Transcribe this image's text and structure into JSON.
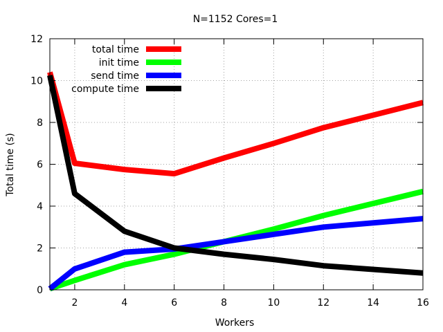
{
  "chart_data": {
    "type": "line",
    "title": "N=1152 Cores=1",
    "xlabel": "Workers",
    "ylabel": "Total time (s)",
    "xlim": [
      1,
      16
    ],
    "ylim": [
      0,
      12
    ],
    "xticks": [
      2,
      4,
      6,
      8,
      10,
      12,
      14,
      16
    ],
    "yticks": [
      0,
      2,
      4,
      6,
      8,
      10,
      12
    ],
    "grid": true,
    "legend_position": "top-left",
    "series": [
      {
        "name": "total time",
        "color": "#ff0000",
        "points": [
          [
            1,
            10.4
          ],
          [
            2,
            6.05
          ],
          [
            4,
            5.75
          ],
          [
            6,
            5.55
          ],
          [
            8,
            6.3
          ],
          [
            10,
            7.0
          ],
          [
            12,
            7.75
          ],
          [
            16,
            8.95
          ]
        ]
      },
      {
        "name": "init time",
        "color": "#00ff00",
        "points": [
          [
            1,
            0.05
          ],
          [
            2,
            0.45
          ],
          [
            4,
            1.2
          ],
          [
            6,
            1.7
          ],
          [
            8,
            2.3
          ],
          [
            10,
            2.9
          ],
          [
            12,
            3.55
          ],
          [
            16,
            4.7
          ]
        ]
      },
      {
        "name": "send time",
        "color": "#0000ff",
        "points": [
          [
            1,
            0.05
          ],
          [
            2,
            1.0
          ],
          [
            4,
            1.8
          ],
          [
            6,
            1.95
          ],
          [
            8,
            2.3
          ],
          [
            10,
            2.65
          ],
          [
            12,
            3.0
          ],
          [
            16,
            3.4
          ]
        ]
      },
      {
        "name": "compute time",
        "color": "#000000",
        "points": [
          [
            1,
            10.25
          ],
          [
            2,
            4.6
          ],
          [
            4,
            2.8
          ],
          [
            6,
            2.0
          ],
          [
            8,
            1.7
          ],
          [
            10,
            1.45
          ],
          [
            12,
            1.15
          ],
          [
            16,
            0.8
          ]
        ]
      }
    ]
  }
}
